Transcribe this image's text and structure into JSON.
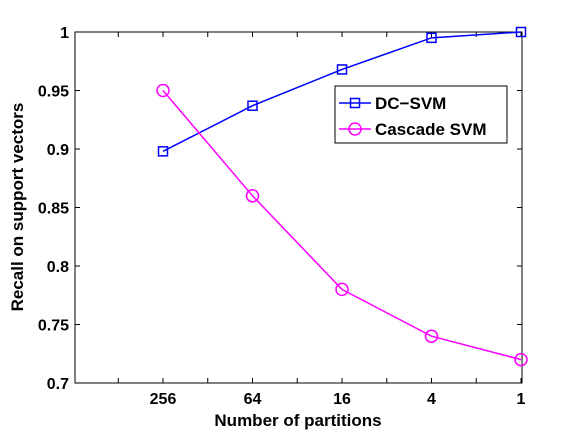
{
  "chart_data": {
    "type": "line",
    "categories": [
      "256",
      "64",
      "16",
      "4",
      "1"
    ],
    "xlabel": "Number of partitions",
    "ylabel": "Recall on support vectors",
    "ylim": [
      0.7,
      1.0
    ],
    "yticks": [
      "0.7",
      "0.75",
      "0.8",
      "0.85",
      "0.9",
      "0.95",
      "1"
    ],
    "yticks_values": [
      0.7,
      0.75,
      0.8,
      0.85,
      0.9,
      0.95,
      1.0
    ],
    "grid": false,
    "legend_position": "top-right",
    "series": [
      {
        "name": "DC−SVM",
        "values": [
          0.898,
          0.937,
          0.968,
          0.995,
          1.0
        ],
        "color": "#0000ff",
        "marker": "square"
      },
      {
        "name": "Cascade SVM",
        "values": [
          0.95,
          0.86,
          0.78,
          0.74,
          0.72
        ],
        "color": "#ff00ff",
        "marker": "circle"
      }
    ]
  }
}
